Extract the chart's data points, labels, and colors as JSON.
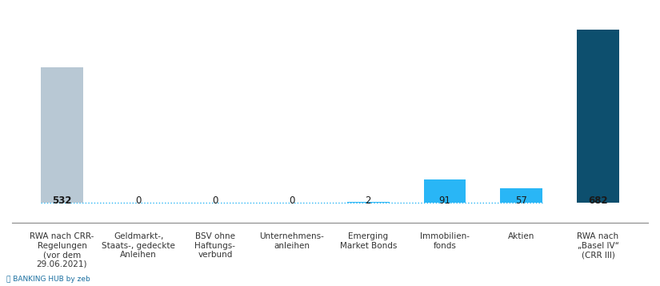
{
  "categories": [
    "RWA nach CRR-\nRegelungen\n(vor dem\n29.06.2021)",
    "Geldmarkt-,\nStaats-, gedeckte\nAnleihen",
    "BSV ohne\nHaftungs-\nverbund",
    "Unternehmens-\nanleihen",
    "Emerging\nMarket Bonds",
    "Immobilien-\nfonds",
    "Aktien",
    "RWA nach\n„Basel IV“\n(CRR III)"
  ],
  "values": [
    532,
    0,
    0,
    0,
    2,
    91,
    57,
    682
  ],
  "bar_colors": [
    "#b8c8d4",
    "#29b6f6",
    "#29b6f6",
    "#29b6f6",
    "#29b6f6",
    "#29b6f6",
    "#29b6f6",
    "#0d4f6e"
  ],
  "label_bold": [
    true,
    false,
    false,
    false,
    false,
    false,
    false,
    true
  ],
  "dotted_line_color": "#29b6f6",
  "background_color": "#ffffff",
  "ylim_max": 750,
  "bar_width": 0.55,
  "figsize": [
    8.25,
    3.57
  ],
  "dpi": 100,
  "label_fontsize": 7.5,
  "value_fontsize": 8.5,
  "watermark_text": "⑂ BANKING HUB by zeb",
  "watermark_fontsize": 6.5
}
